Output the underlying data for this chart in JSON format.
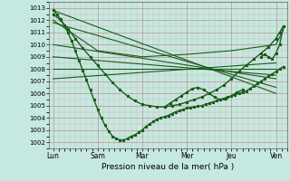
{
  "xlabel": "Pression niveau de la mer( hPa )",
  "bg_color": "#c5e8e0",
  "line_color": "#1a5c1a",
  "ylim": [
    1001.5,
    1013.5
  ],
  "yticks": [
    1002,
    1003,
    1004,
    1005,
    1006,
    1007,
    1008,
    1009,
    1010,
    1011,
    1012,
    1013
  ],
  "xtick_labels": [
    "Lun",
    "Sam",
    "Mar",
    "Mer",
    "Jeu",
    "Ven"
  ],
  "xtick_positions": [
    0,
    24,
    48,
    72,
    96,
    120
  ],
  "xlim": [
    -2,
    126
  ],
  "series": [
    {
      "x": [
        0,
        2,
        4,
        6,
        8,
        10,
        12,
        14,
        16,
        18,
        20,
        22,
        24,
        26,
        28,
        30,
        32,
        34,
        36,
        38,
        40,
        42,
        44,
        46,
        48,
        50,
        52,
        54,
        56,
        58,
        60,
        62,
        64,
        66,
        68,
        70,
        72,
        74,
        76,
        78,
        80,
        82,
        84,
        86,
        88,
        90,
        92,
        94,
        96,
        98,
        100,
        102,
        104,
        106,
        108,
        110,
        112,
        114,
        116,
        118,
        120,
        122,
        124
      ],
      "y": [
        1012.8,
        1012.5,
        1012.1,
        1011.6,
        1011.0,
        1010.3,
        1009.5,
        1008.7,
        1007.9,
        1007.1,
        1006.3,
        1005.5,
        1004.7,
        1004.0,
        1003.4,
        1002.9,
        1002.5,
        1002.3,
        1002.2,
        1002.2,
        1002.3,
        1002.5,
        1002.6,
        1002.8,
        1003.0,
        1003.3,
        1003.5,
        1003.7,
        1003.9,
        1004.0,
        1004.1,
        1004.2,
        1004.35,
        1004.5,
        1004.6,
        1004.7,
        1004.8,
        1004.85,
        1004.9,
        1004.95,
        1005.0,
        1005.1,
        1005.2,
        1005.3,
        1005.4,
        1005.5,
        1005.6,
        1005.7,
        1005.8,
        1005.9,
        1006.0,
        1006.1,
        1006.2,
        1006.4,
        1006.6,
        1006.8,
        1007.0,
        1007.2,
        1007.4,
        1007.6,
        1007.8,
        1008.0,
        1008.2
      ],
      "marker": true,
      "lw": 1.0
    },
    {
      "x": [
        0,
        120
      ],
      "y": [
        1012.8,
        1006.0
      ],
      "marker": false,
      "lw": 0.8
    },
    {
      "x": [
        0,
        120
      ],
      "y": [
        1011.8,
        1006.5
      ],
      "marker": false,
      "lw": 0.8
    },
    {
      "x": [
        0,
        120
      ],
      "y": [
        1010.0,
        1007.2
      ],
      "marker": false,
      "lw": 0.8
    },
    {
      "x": [
        0,
        120
      ],
      "y": [
        1009.0,
        1007.5
      ],
      "marker": false,
      "lw": 0.8
    },
    {
      "x": [
        0,
        120
      ],
      "y": [
        1008.0,
        1008.0
      ],
      "marker": false,
      "lw": 0.8
    },
    {
      "x": [
        0,
        120
      ],
      "y": [
        1007.2,
        1008.5
      ],
      "marker": false,
      "lw": 0.8
    },
    {
      "x": [
        0,
        4,
        8,
        12,
        16,
        20,
        24,
        28,
        32,
        36,
        40,
        44,
        48,
        52,
        56,
        60,
        64,
        68,
        72,
        76,
        80,
        84,
        88,
        92,
        96,
        100,
        104,
        108,
        112,
        116,
        120,
        122,
        124
      ],
      "y": [
        1012.5,
        1012.0,
        1011.3,
        1010.5,
        1009.7,
        1009.0,
        1008.3,
        1007.6,
        1006.9,
        1006.3,
        1005.8,
        1005.4,
        1005.1,
        1005.0,
        1004.9,
        1004.9,
        1005.0,
        1005.1,
        1005.3,
        1005.5,
        1005.7,
        1006.0,
        1006.3,
        1006.7,
        1007.2,
        1007.8,
        1008.3,
        1008.8,
        1009.3,
        1009.8,
        1010.5,
        1011.0,
        1011.5
      ],
      "marker": true,
      "lw": 1.0
    },
    {
      "x": [
        60,
        63,
        66,
        69,
        72,
        75,
        78,
        81,
        84,
        87,
        90,
        93,
        96,
        99,
        102
      ],
      "y": [
        1004.9,
        1005.2,
        1005.5,
        1005.8,
        1006.1,
        1006.4,
        1006.5,
        1006.3,
        1006.0,
        1005.7,
        1005.5,
        1005.6,
        1005.8,
        1006.1,
        1006.3
      ],
      "marker": true,
      "lw": 1.0
    },
    {
      "x": [
        0,
        24,
        48,
        72,
        96,
        120,
        124
      ],
      "y": [
        1012.0,
        1009.5,
        1009.0,
        1009.2,
        1009.5,
        1010.0,
        1011.2
      ],
      "marker": false,
      "lw": 0.8
    },
    {
      "x": [
        112,
        114,
        116,
        118,
        120,
        122,
        124
      ],
      "y": [
        1009.0,
        1009.2,
        1009.0,
        1008.8,
        1009.3,
        1010.0,
        1011.5
      ],
      "marker": true,
      "lw": 1.0
    }
  ]
}
